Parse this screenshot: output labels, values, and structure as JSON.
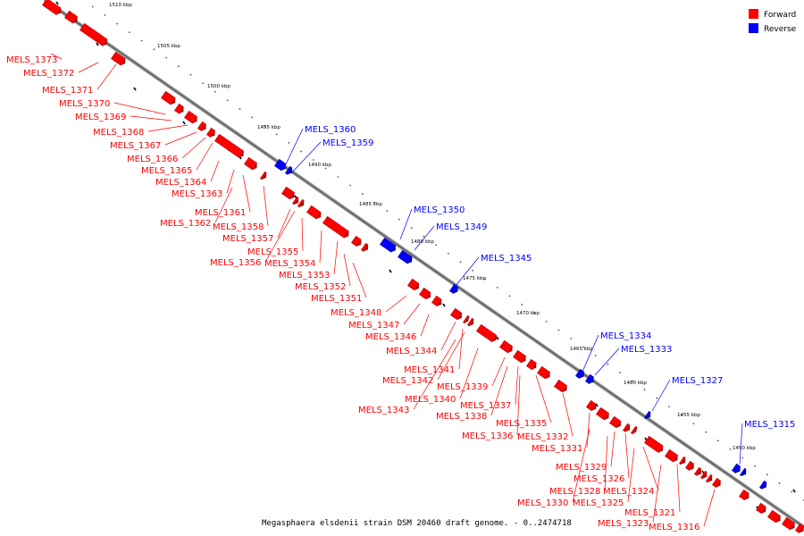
{
  "caption": "Megasphaera elsdenii strain DSM 20460 draft genome. - 0..2474718",
  "legend": {
    "forward_label": "Forward",
    "reverse_label": "Reverse",
    "forward_color": "#ff0000",
    "reverse_color": "#0000ff"
  },
  "scale_marks": [
    "1510 kbp",
    "1505 kbp",
    "1500 kbp",
    "1495 kbp",
    "1490 kbp",
    "1485 kbp",
    "1480 kbp",
    "1475 kbp",
    "1470 kbp",
    "1465 kbp",
    "1460 kbp",
    "1455 kbp",
    "1450 kbp"
  ],
  "genes": [
    {
      "label": "MELS_1373",
      "strand": "forward"
    },
    {
      "label": "MELS_1372",
      "strand": "forward"
    },
    {
      "label": "MELS_1371",
      "strand": "forward"
    },
    {
      "label": "MELS_1370",
      "strand": "forward"
    },
    {
      "label": "MELS_1369",
      "strand": "forward"
    },
    {
      "label": "MELS_1368",
      "strand": "forward"
    },
    {
      "label": "MELS_1367",
      "strand": "forward"
    },
    {
      "label": "MELS_1366",
      "strand": "forward"
    },
    {
      "label": "MELS_1365",
      "strand": "forward"
    },
    {
      "label": "MELS_1364",
      "strand": "forward"
    },
    {
      "label": "MELS_1363",
      "strand": "forward"
    },
    {
      "label": "MELS_1361",
      "strand": "forward"
    },
    {
      "label": "MELS_1362",
      "strand": "forward"
    },
    {
      "label": "MELS_1358",
      "strand": "forward"
    },
    {
      "label": "MELS_1357",
      "strand": "forward"
    },
    {
      "label": "MELS_1355",
      "strand": "forward"
    },
    {
      "label": "MELS_1356",
      "strand": "forward"
    },
    {
      "label": "MELS_1354",
      "strand": "forward"
    },
    {
      "label": "MELS_1353",
      "strand": "forward"
    },
    {
      "label": "MELS_1352",
      "strand": "forward"
    },
    {
      "label": "MELS_1351",
      "strand": "forward"
    },
    {
      "label": "MELS_1348",
      "strand": "forward"
    },
    {
      "label": "MELS_1347",
      "strand": "forward"
    },
    {
      "label": "MELS_1346",
      "strand": "forward"
    },
    {
      "label": "MELS_1344",
      "strand": "forward"
    },
    {
      "label": "MELS_1341",
      "strand": "forward"
    },
    {
      "label": "MELS_1342",
      "strand": "forward"
    },
    {
      "label": "MELS_1340",
      "strand": "forward"
    },
    {
      "label": "MELS_1339",
      "strand": "forward"
    },
    {
      "label": "MELS_1343",
      "strand": "forward"
    },
    {
      "label": "MELS_1337",
      "strand": "forward"
    },
    {
      "label": "MELS_1338",
      "strand": "forward"
    },
    {
      "label": "MELS_1335",
      "strand": "forward"
    },
    {
      "label": "MELS_1336",
      "strand": "forward"
    },
    {
      "label": "MELS_1332",
      "strand": "forward"
    },
    {
      "label": "MELS_1331",
      "strand": "forward"
    },
    {
      "label": "MELS_1329",
      "strand": "forward"
    },
    {
      "label": "MELS_1326",
      "strand": "forward"
    },
    {
      "label": "MELS_1328",
      "strand": "forward"
    },
    {
      "label": "MELS_1324",
      "strand": "forward"
    },
    {
      "label": "MELS_1330",
      "strand": "forward"
    },
    {
      "label": "MELS_1325",
      "strand": "forward"
    },
    {
      "label": "MELS_1321",
      "strand": "forward"
    },
    {
      "label": "MELS_1323",
      "strand": "forward"
    },
    {
      "label": "MELS_1316",
      "strand": "forward"
    },
    {
      "label": "MELS_1360",
      "strand": "reverse"
    },
    {
      "label": "MELS_1359",
      "strand": "reverse"
    },
    {
      "label": "MELS_1350",
      "strand": "reverse"
    },
    {
      "label": "MELS_1349",
      "strand": "reverse"
    },
    {
      "label": "MELS_1345",
      "strand": "reverse"
    },
    {
      "label": "MELS_1334",
      "strand": "reverse"
    },
    {
      "label": "MELS_1333",
      "strand": "reverse"
    },
    {
      "label": "MELS_1327",
      "strand": "reverse"
    },
    {
      "label": "MELS_1315",
      "strand": "reverse"
    }
  ]
}
